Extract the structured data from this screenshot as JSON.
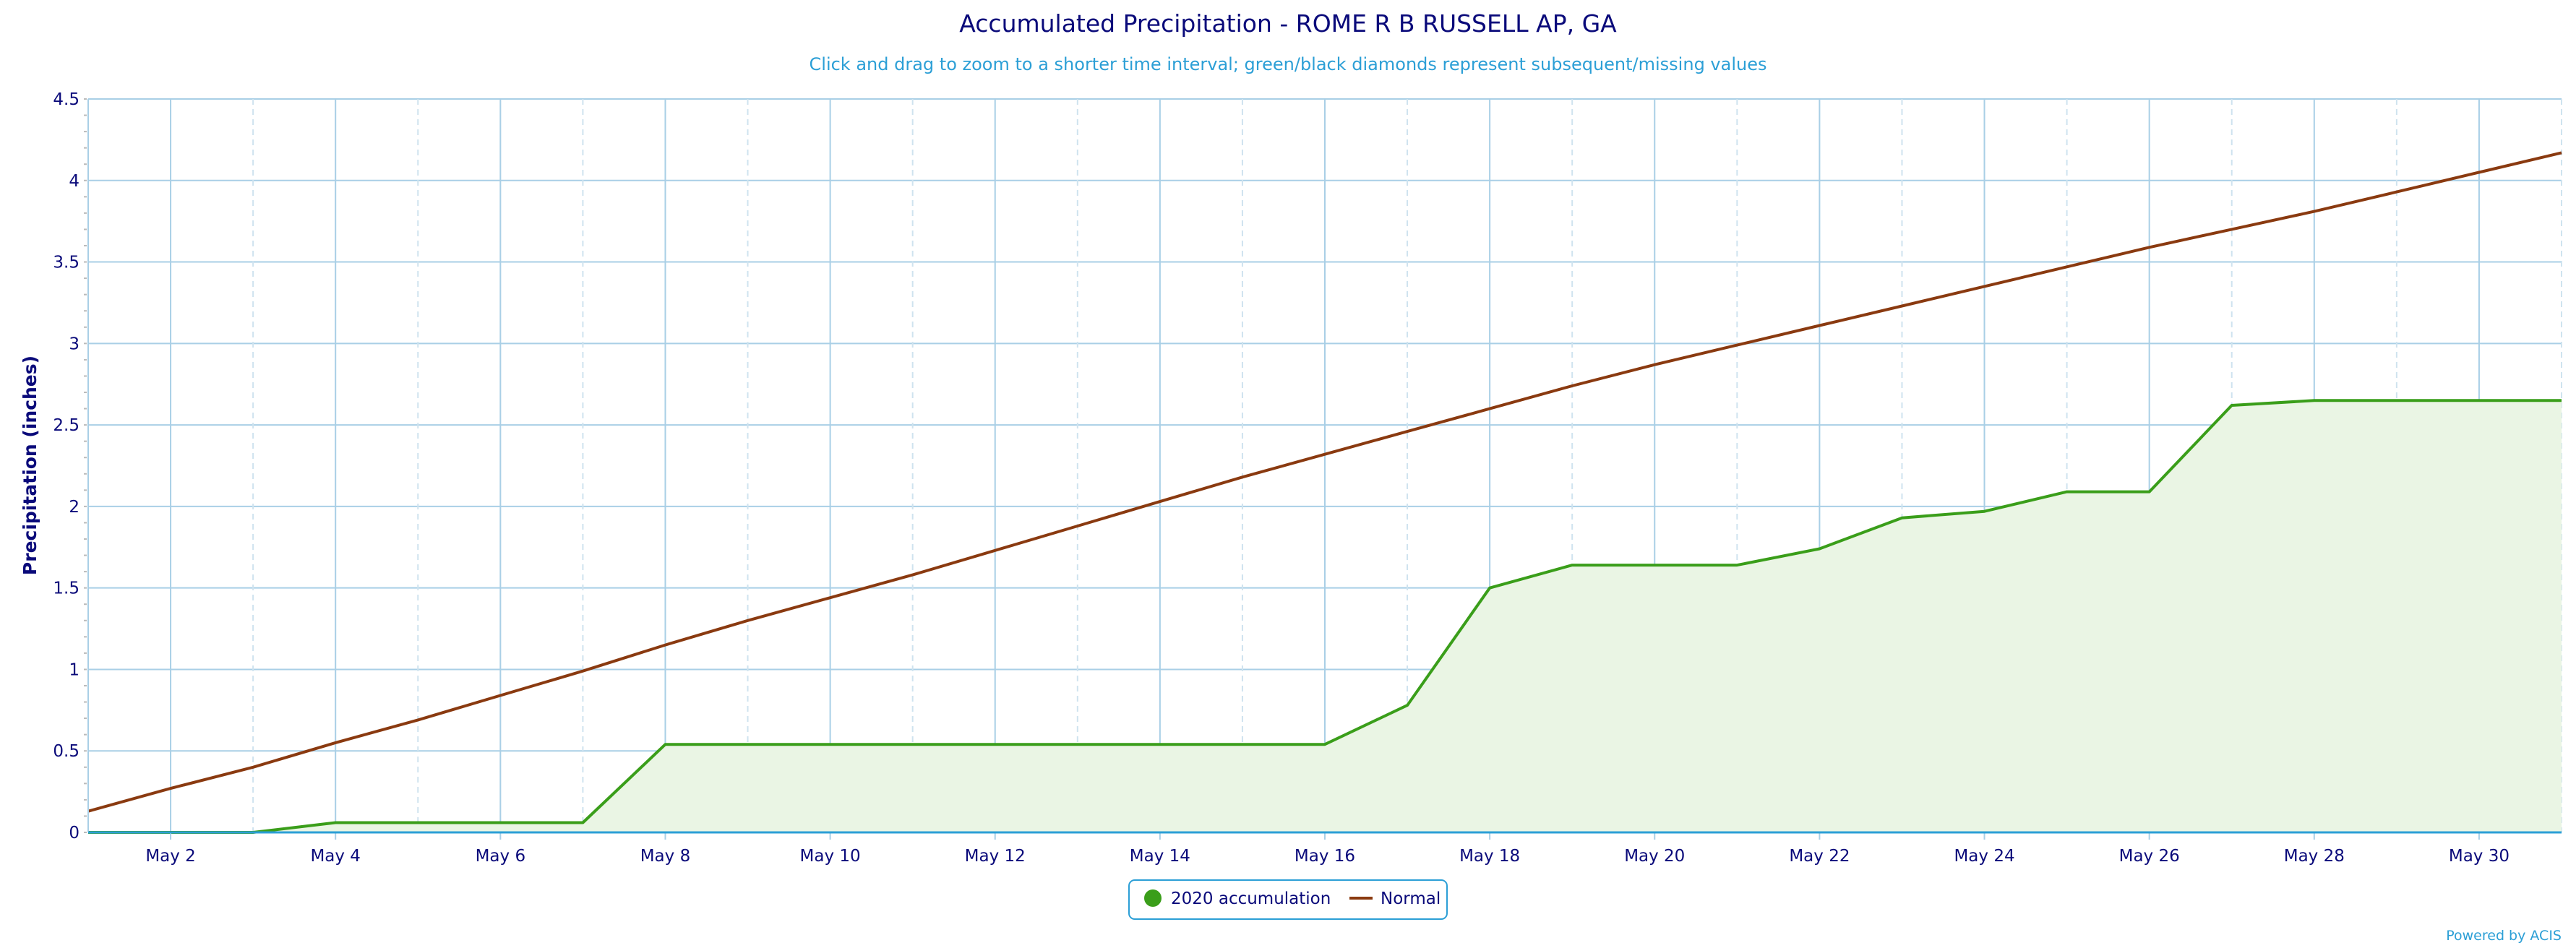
{
  "chart_data": {
    "type": "area",
    "title": "Accumulated Precipitation - ROME R B RUSSELL AP, GA",
    "subtitle": "Click and drag to zoom to a shorter time interval; green/black diamonds represent subsequent/missing values",
    "ylabel": "Precipitation (inches)",
    "xlabel": "",
    "ylim": [
      0,
      4.5
    ],
    "yticks": [
      "0",
      "0.5",
      "1",
      "1.5",
      "2",
      "2.5",
      "3",
      "3.5",
      "4",
      "4.5"
    ],
    "xlim": [
      1,
      31
    ],
    "xticks": [
      {
        "day": 2,
        "label": "May 2"
      },
      {
        "day": 4,
        "label": "May 4"
      },
      {
        "day": 6,
        "label": "May 6"
      },
      {
        "day": 8,
        "label": "May 8"
      },
      {
        "day": 10,
        "label": "May 10"
      },
      {
        "day": 12,
        "label": "May 12"
      },
      {
        "day": 14,
        "label": "May 14"
      },
      {
        "day": 16,
        "label": "May 16"
      },
      {
        "day": 18,
        "label": "May 18"
      },
      {
        "day": 20,
        "label": "May 20"
      },
      {
        "day": 22,
        "label": "May 22"
      },
      {
        "day": 24,
        "label": "May 24"
      },
      {
        "day": 26,
        "label": "May 26"
      },
      {
        "day": 28,
        "label": "May 28"
      },
      {
        "day": 30,
        "label": "May 30"
      }
    ],
    "grid": true,
    "legend_position": "bottom-center",
    "x": [
      1,
      2,
      3,
      4,
      5,
      6,
      7,
      8,
      9,
      10,
      11,
      12,
      13,
      14,
      15,
      16,
      17,
      18,
      19,
      20,
      21,
      22,
      23,
      24,
      25,
      26,
      27,
      28,
      29,
      30,
      31
    ],
    "series": [
      {
        "name": "2020 accumulation",
        "color": "#3a9e1a",
        "fill": "#eaf5e4",
        "values": [
          0.0,
          0.0,
          0.0,
          0.06,
          0.06,
          0.06,
          0.06,
          0.54,
          0.54,
          0.54,
          0.54,
          0.54,
          0.54,
          0.54,
          0.54,
          0.54,
          0.78,
          1.5,
          1.64,
          1.64,
          1.64,
          1.74,
          1.93,
          1.97,
          2.09,
          2.09,
          2.62,
          2.65,
          2.65,
          2.65,
          2.65
        ]
      },
      {
        "name": "Normal",
        "color": "#8a3a10",
        "values": [
          0.13,
          0.27,
          0.4,
          0.55,
          0.69,
          0.84,
          0.99,
          1.15,
          1.3,
          1.44,
          1.58,
          1.73,
          1.88,
          2.03,
          2.18,
          2.32,
          2.46,
          2.6,
          2.74,
          2.87,
          2.99,
          3.11,
          3.23,
          3.35,
          3.47,
          3.59,
          3.7,
          3.81,
          3.93,
          4.05,
          4.17
        ]
      }
    ],
    "credits": "Powered by ACIS"
  }
}
